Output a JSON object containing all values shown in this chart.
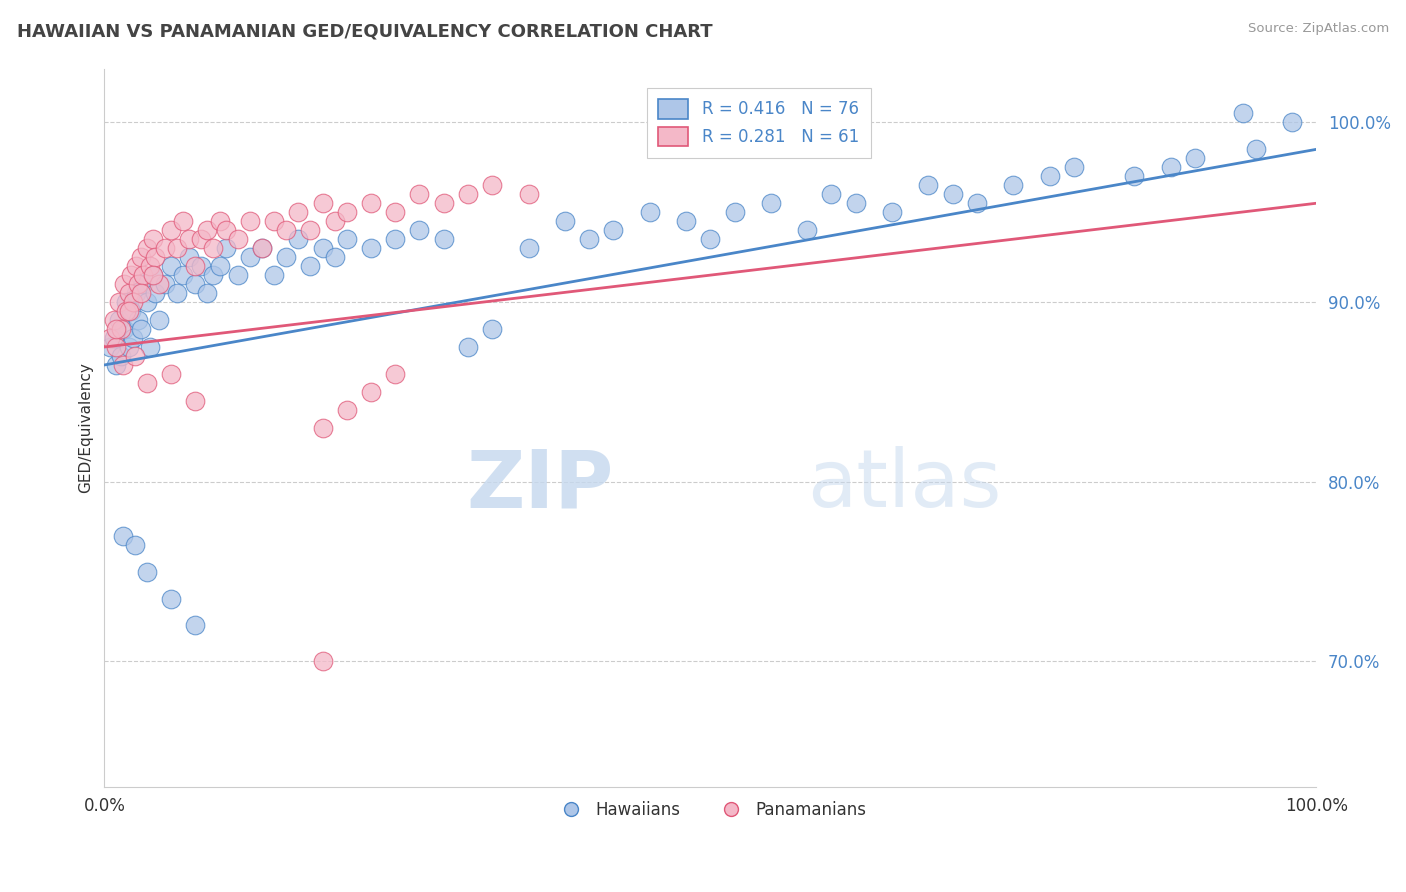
{
  "title": "HAWAIIAN VS PANAMANIAN GED/EQUIVALENCY CORRELATION CHART",
  "source": "Source: ZipAtlas.com",
  "ylabel": "GED/Equivalency",
  "legend_hawaiians": "Hawaiians",
  "legend_panamanians": "Panamanians",
  "r_hawaiian": 0.416,
  "n_hawaiian": 76,
  "r_panamanian": 0.281,
  "n_panamanian": 61,
  "y_ticks": [
    70.0,
    80.0,
    90.0,
    100.0
  ],
  "hawaiian_color": "#aec6e8",
  "panamanian_color": "#f4b8c8",
  "hawaiian_line_color": "#4a86c8",
  "panamanian_line_color": "#e05878",
  "text_color": "#4a86c8",
  "watermark_zip": "ZIP",
  "watermark_atlas": "atlas",
  "ylim_low": 63.0,
  "ylim_high": 103.0,
  "xlim_low": 0.0,
  "xlim_high": 1.0,
  "h_line_x0": 0.0,
  "h_line_x1": 1.0,
  "h_line_y0": 86.5,
  "h_line_y1": 98.5,
  "p_line_x0": 0.0,
  "p_line_x1": 1.0,
  "p_line_y0": 87.5,
  "p_line_y1": 95.5,
  "hawaiian_x": [
    0.005,
    0.008,
    0.01,
    0.012,
    0.014,
    0.016,
    0.018,
    0.02,
    0.022,
    0.024,
    0.026,
    0.028,
    0.03,
    0.032,
    0.035,
    0.038,
    0.04,
    0.042,
    0.045,
    0.05,
    0.055,
    0.06,
    0.065,
    0.07,
    0.075,
    0.08,
    0.085,
    0.09,
    0.095,
    0.1,
    0.11,
    0.12,
    0.13,
    0.14,
    0.15,
    0.16,
    0.17,
    0.18,
    0.19,
    0.2,
    0.22,
    0.24,
    0.26,
    0.28,
    0.3,
    0.32,
    0.35,
    0.38,
    0.4,
    0.42,
    0.45,
    0.48,
    0.5,
    0.52,
    0.55,
    0.58,
    0.6,
    0.62,
    0.65,
    0.68,
    0.7,
    0.72,
    0.75,
    0.78,
    0.8,
    0.85,
    0.88,
    0.9,
    0.95,
    0.98,
    0.015,
    0.025,
    0.035,
    0.055,
    0.075,
    0.94
  ],
  "hawaiian_y": [
    87.5,
    88.0,
    86.5,
    89.0,
    87.0,
    88.5,
    90.0,
    87.5,
    89.5,
    88.0,
    90.5,
    89.0,
    88.5,
    91.0,
    90.0,
    87.5,
    91.5,
    90.5,
    89.0,
    91.0,
    92.0,
    90.5,
    91.5,
    92.5,
    91.0,
    92.0,
    90.5,
    91.5,
    92.0,
    93.0,
    91.5,
    92.5,
    93.0,
    91.5,
    92.5,
    93.5,
    92.0,
    93.0,
    92.5,
    93.5,
    93.0,
    93.5,
    94.0,
    93.5,
    87.5,
    88.5,
    93.0,
    94.5,
    93.5,
    94.0,
    95.0,
    94.5,
    93.5,
    95.0,
    95.5,
    94.0,
    96.0,
    95.5,
    95.0,
    96.5,
    96.0,
    95.5,
    96.5,
    97.0,
    97.5,
    97.0,
    97.5,
    98.0,
    98.5,
    100.0,
    77.0,
    76.5,
    75.0,
    73.5,
    72.0,
    100.5
  ],
  "panamanian_x": [
    0.005,
    0.008,
    0.01,
    0.012,
    0.014,
    0.016,
    0.018,
    0.02,
    0.022,
    0.024,
    0.026,
    0.028,
    0.03,
    0.032,
    0.035,
    0.038,
    0.04,
    0.042,
    0.045,
    0.05,
    0.055,
    0.06,
    0.065,
    0.07,
    0.075,
    0.08,
    0.085,
    0.09,
    0.095,
    0.1,
    0.11,
    0.12,
    0.13,
    0.14,
    0.15,
    0.16,
    0.17,
    0.18,
    0.19,
    0.2,
    0.22,
    0.24,
    0.26,
    0.28,
    0.3,
    0.32,
    0.35,
    0.015,
    0.025,
    0.035,
    0.055,
    0.075,
    0.18,
    0.2,
    0.22,
    0.24,
    0.01,
    0.02,
    0.03,
    0.04,
    0.18
  ],
  "panamanian_y": [
    88.0,
    89.0,
    87.5,
    90.0,
    88.5,
    91.0,
    89.5,
    90.5,
    91.5,
    90.0,
    92.0,
    91.0,
    92.5,
    91.5,
    93.0,
    92.0,
    93.5,
    92.5,
    91.0,
    93.0,
    94.0,
    93.0,
    94.5,
    93.5,
    92.0,
    93.5,
    94.0,
    93.0,
    94.5,
    94.0,
    93.5,
    94.5,
    93.0,
    94.5,
    94.0,
    95.0,
    94.0,
    95.5,
    94.5,
    95.0,
    95.5,
    95.0,
    96.0,
    95.5,
    96.0,
    96.5,
    96.0,
    86.5,
    87.0,
    85.5,
    86.0,
    84.5,
    83.0,
    84.0,
    85.0,
    86.0,
    88.5,
    89.5,
    90.5,
    91.5,
    70.0
  ]
}
